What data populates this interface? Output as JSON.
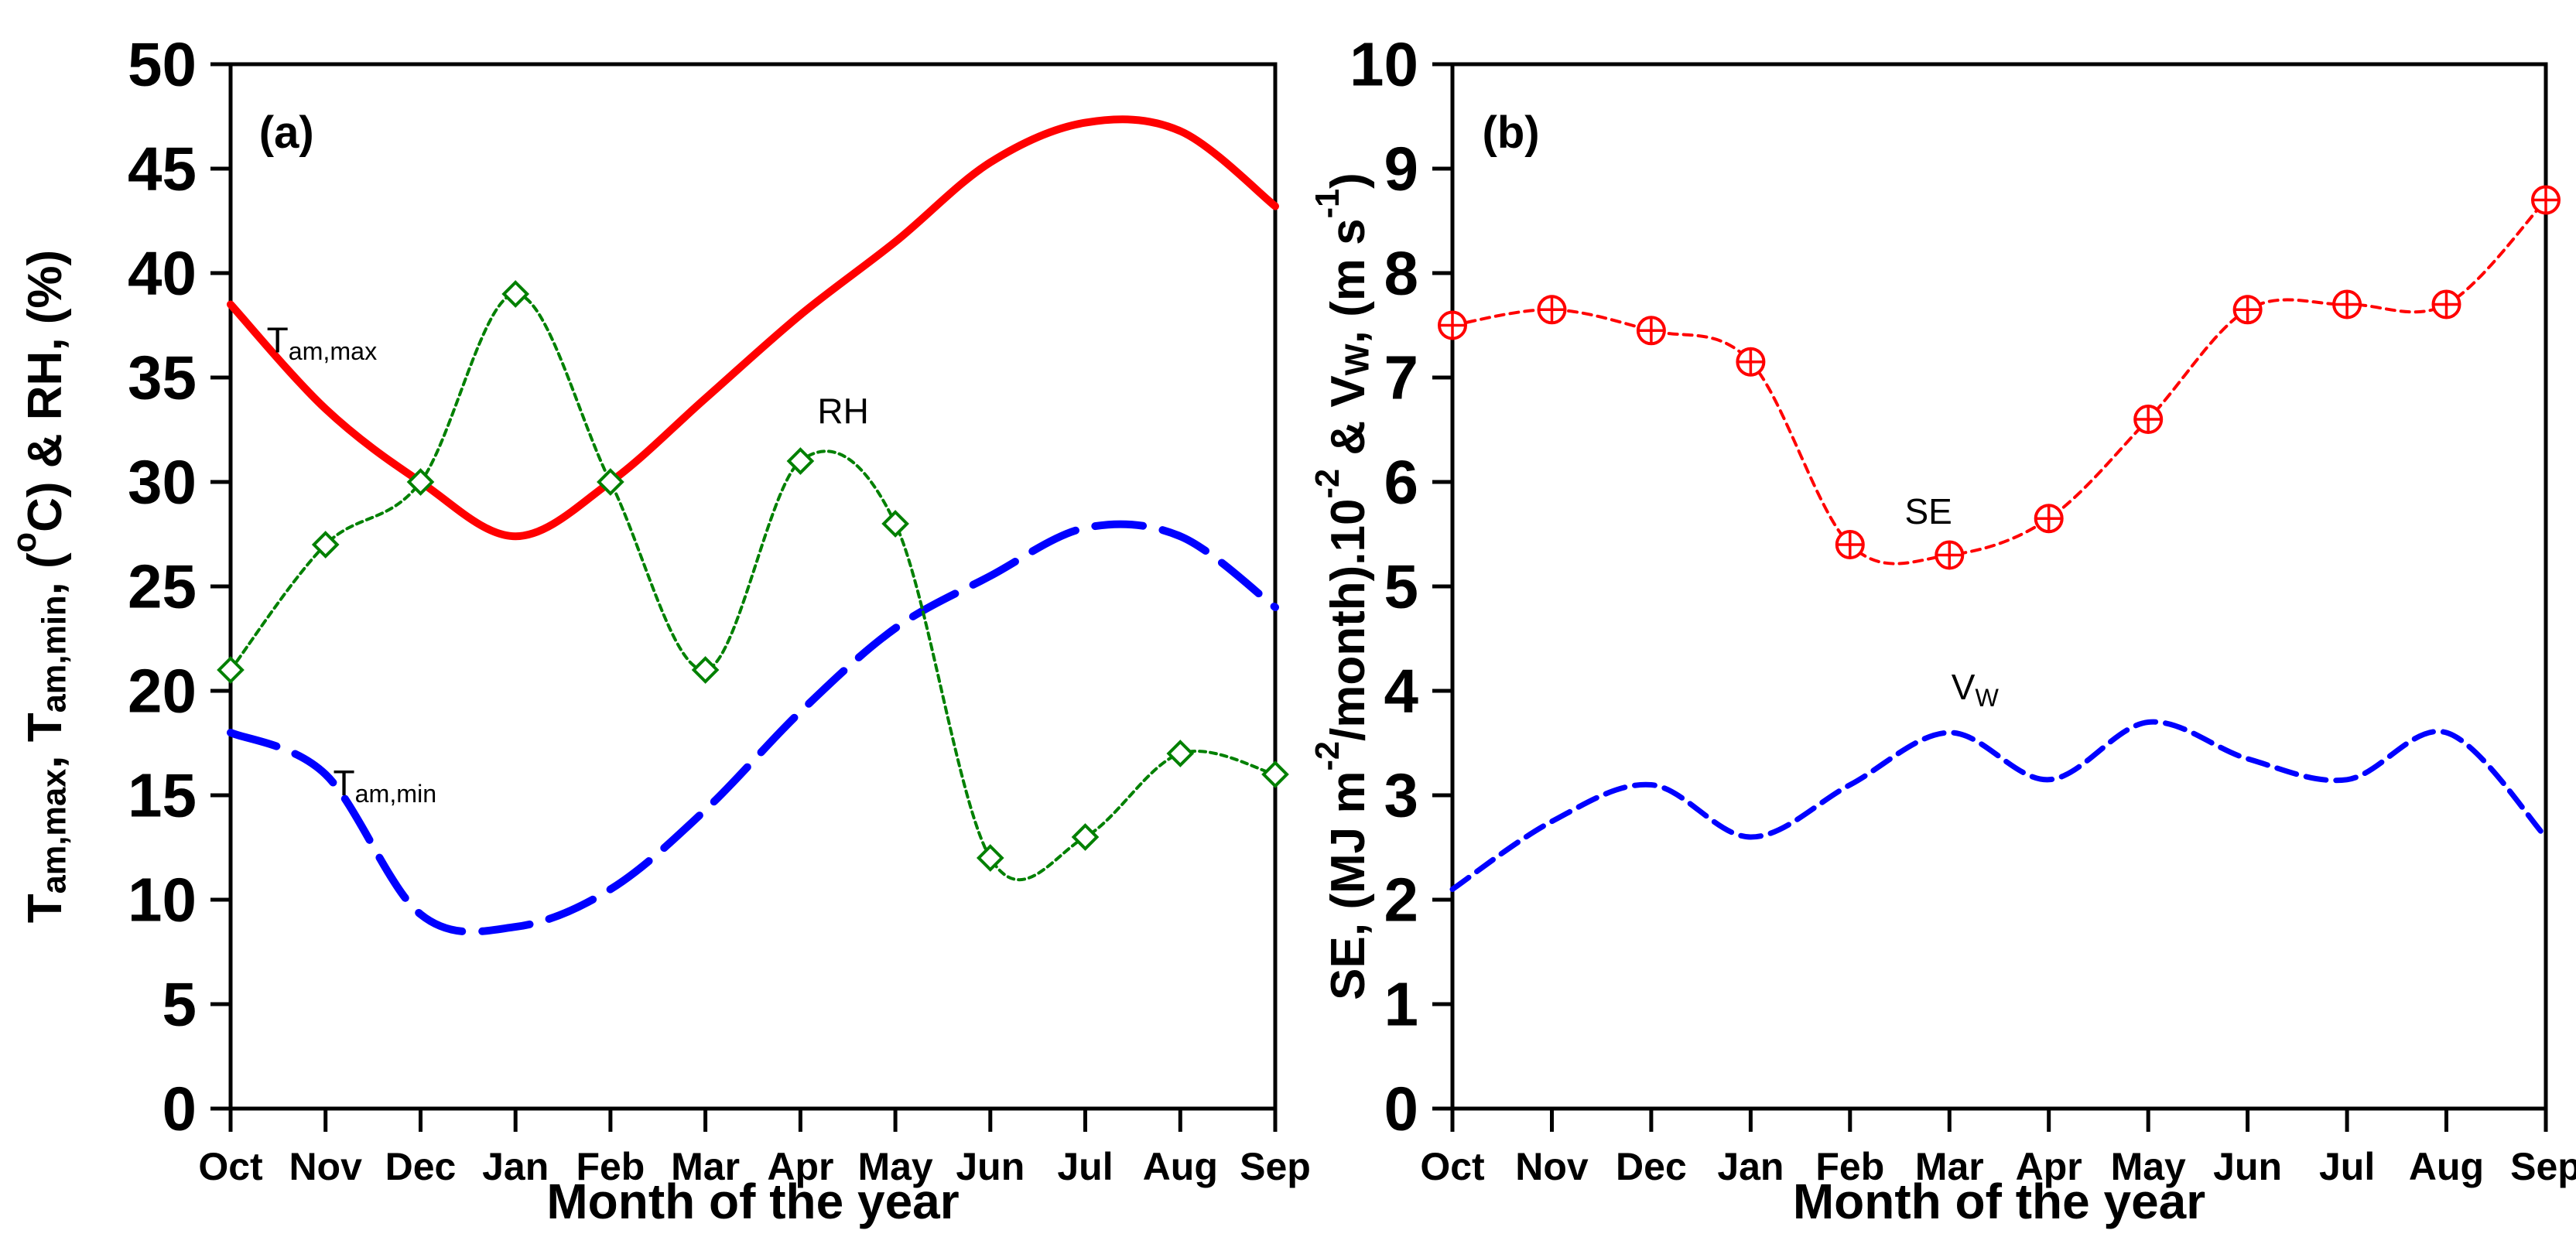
{
  "chart_data": [
    {
      "id": "a",
      "type": "line",
      "panel_label": "(a)",
      "categories": [
        "Oct",
        "Nov",
        "Dec",
        "Jan",
        "Feb",
        "Mar",
        "Apr",
        "May",
        "Jun",
        "Jul",
        "Aug",
        "Sep"
      ],
      "xlabel": "Month of the year",
      "ylabel_text": "Tam,max, Tam,min, (oC) & RH, (%)",
      "ylabel_parts": [
        {
          "t": "T"
        },
        {
          "t": "am,max",
          "s": "sub"
        },
        {
          "t": ", T"
        },
        {
          "t": "am,min",
          "s": "sub"
        },
        {
          "t": ", ("
        },
        {
          "t": "o",
          "s": "sup"
        },
        {
          "t": "C) & RH, (%)"
        }
      ],
      "ylim": [
        0,
        50
      ],
      "ytick_step": 5,
      "grid": false,
      "legend_position": "in-plot-labels",
      "series": [
        {
          "name": "T_am,max",
          "color": "#ff0000",
          "width": 10,
          "dash": "",
          "marker": "none",
          "values": [
            38.5,
            33.5,
            30,
            27.4,
            30,
            34,
            38,
            41.5,
            45.3,
            47.2,
            46.8,
            43.2
          ]
        },
        {
          "name": "T_am,min",
          "color": "#0000ff",
          "width": 10,
          "dash": "62 26",
          "marker": "none",
          "values": [
            18,
            16,
            9.3,
            8.7,
            10.5,
            14.3,
            19,
            23,
            25.5,
            27.8,
            27.4,
            24
          ]
        },
        {
          "name": "RH",
          "color": "#008000",
          "width": 4,
          "dash": "8 6",
          "marker": "diamond",
          "values": [
            21,
            27,
            30,
            39,
            30,
            21,
            31,
            28,
            12,
            13,
            17,
            16
          ]
        }
      ],
      "annotations": [
        {
          "name": "corner-label",
          "parts": [
            {
              "t": "(a)"
            }
          ],
          "x": 0.3,
          "y": 46.0,
          "size": 58,
          "bold": true,
          "anchor": "start"
        },
        {
          "name": "label-tam-max",
          "parts": [
            {
              "t": "T"
            },
            {
              "t": "am,max",
              "s": "sub"
            }
          ],
          "x": 0.38,
          "y": 36.2,
          "size": 46,
          "bold": false,
          "anchor": "start"
        },
        {
          "name": "label-tam-min",
          "parts": [
            {
              "t": "T"
            },
            {
              "t": "am,min",
              "s": "sub"
            }
          ],
          "x": 1.08,
          "y": 15.0,
          "size": 46,
          "bold": false,
          "anchor": "start"
        },
        {
          "name": "label-rh",
          "parts": [
            {
              "t": "RH"
            }
          ],
          "x": 6.45,
          "y": 32.8,
          "size": 46,
          "bold": false,
          "anchor": "middle"
        }
      ]
    },
    {
      "id": "b",
      "type": "line",
      "panel_label": "(b)",
      "categories": [
        "Oct",
        "Nov",
        "Dec",
        "Jan",
        "Feb",
        "Mar",
        "Apr",
        "May",
        "Jun",
        "Jul",
        "Aug",
        "Sep"
      ],
      "xlabel": "Month of the year",
      "ylabel_text": "SE, (MJ m-2/month).10-2 & VW, (m s-1)",
      "ylabel_parts": [
        {
          "t": "SE, (MJ m"
        },
        {
          "t": "-2",
          "s": "sup"
        },
        {
          "t": "/month).10"
        },
        {
          "t": "-2",
          "s": "sup"
        },
        {
          "t": " & V"
        },
        {
          "t": "W",
          "s": "sub"
        },
        {
          "t": ", (m s"
        },
        {
          "t": "-1",
          "s": "sup"
        },
        {
          "t": ")"
        }
      ],
      "ylim": [
        0,
        10
      ],
      "ytick_step": 1,
      "grid": false,
      "legend_position": "in-plot-labels",
      "series": [
        {
          "name": "SE",
          "color": "#ff0000",
          "width": 4,
          "dash": "11 8",
          "marker": "circle-plus",
          "values": [
            7.5,
            7.65,
            7.45,
            7.15,
            5.4,
            5.3,
            5.65,
            6.6,
            7.65,
            7.7,
            7.7,
            8.7
          ]
        },
        {
          "name": "V_W",
          "color": "#0000ff",
          "width": 7,
          "dash": "26 13",
          "marker": "none",
          "values": [
            2.1,
            2.75,
            3.1,
            2.6,
            3.1,
            3.6,
            3.15,
            3.7,
            3.35,
            3.15,
            3.6,
            2.6
          ]
        }
      ],
      "annotations": [
        {
          "name": "corner-label",
          "parts": [
            {
              "t": "(b)"
            }
          ],
          "x": 0.3,
          "y": 9.2,
          "size": 58,
          "bold": true,
          "anchor": "start"
        },
        {
          "name": "label-se",
          "parts": [
            {
              "t": "SE"
            }
          ],
          "x": 4.55,
          "y": 5.6,
          "size": 46,
          "bold": false,
          "anchor": "start"
        },
        {
          "name": "label-vw",
          "parts": [
            {
              "t": "V"
            },
            {
              "t": "W",
              "s": "sub"
            }
          ],
          "x": 5.02,
          "y": 3.92,
          "size": 46,
          "bold": false,
          "anchor": "start"
        }
      ]
    }
  ]
}
